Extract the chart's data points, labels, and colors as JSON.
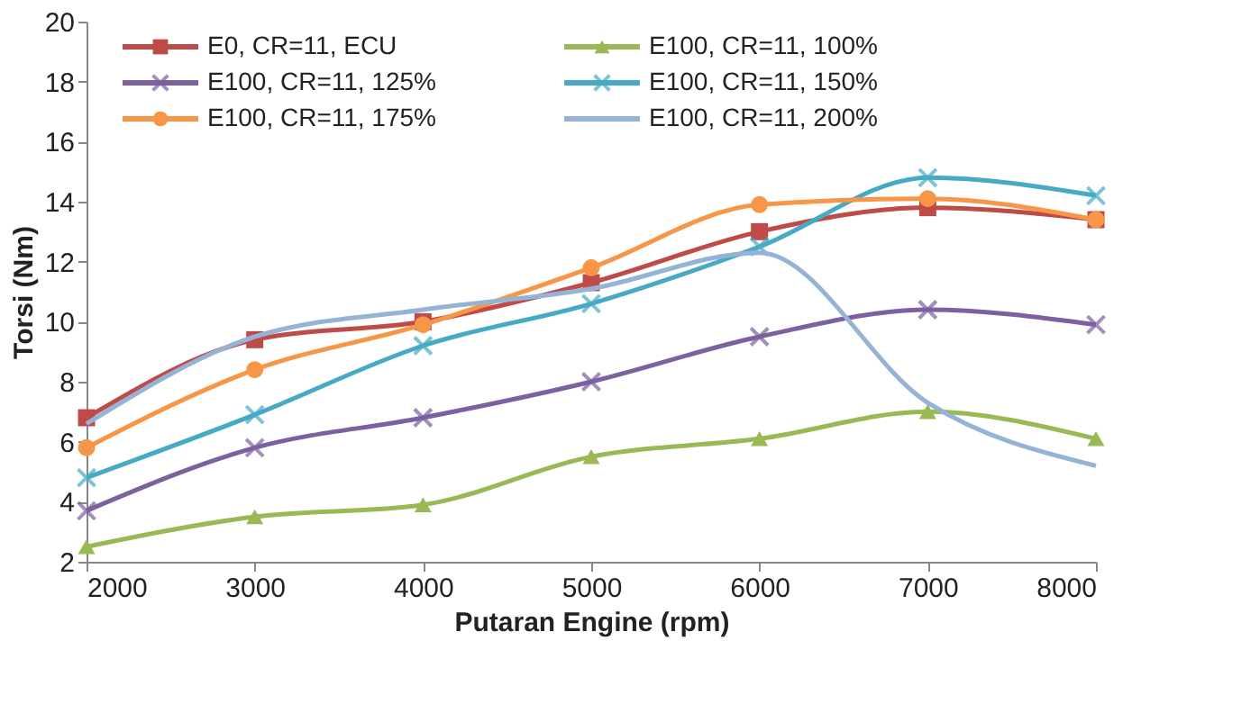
{
  "chart_data": {
    "type": "line",
    "xlabel": "Putaran Engine (rpm)",
    "ylabel": "Torsi (Nm)",
    "x": [
      2000,
      3000,
      4000,
      5000,
      6000,
      7000,
      8000
    ],
    "xlim": [
      2000,
      8000
    ],
    "xticks": [
      2000,
      3000,
      4000,
      5000,
      6000,
      7000,
      8000
    ],
    "ylim": [
      2,
      20
    ],
    "yticks": [
      2,
      4,
      6,
      8,
      10,
      12,
      14,
      16,
      18,
      20
    ],
    "grid": false,
    "legend": "top",
    "series": [
      {
        "name": "E0, CR=11, ECU",
        "color": "#be4b48",
        "marker": "square",
        "values": [
          6.8,
          9.4,
          10.0,
          11.3,
          13.0,
          13.8,
          13.4
        ]
      },
      {
        "name": "E100, CR=11, 100%",
        "color": "#98b954",
        "marker": "triangle",
        "values": [
          2.5,
          3.5,
          3.9,
          5.5,
          6.1,
          7.0,
          6.1
        ]
      },
      {
        "name": "E100, CR=11, 125%",
        "color": "#7d60a0",
        "marker": "cross",
        "values": [
          3.7,
          5.8,
          6.8,
          8.0,
          9.5,
          10.4,
          9.9
        ]
      },
      {
        "name": "E100, CR=11, 150%",
        "color": "#46aac5",
        "marker": "cross",
        "values": [
          4.8,
          6.9,
          9.2,
          10.6,
          12.5,
          14.8,
          14.2
        ]
      },
      {
        "name": "E100, CR=11, 175%",
        "color": "#f79646",
        "marker": "circle",
        "values": [
          5.8,
          8.4,
          9.9,
          11.8,
          13.9,
          14.1,
          13.4
        ]
      },
      {
        "name": "E100, CR=11, 200%",
        "color": "#95b3d7",
        "marker": "none",
        "values": [
          6.6,
          9.5,
          10.4,
          11.1,
          12.3,
          7.3,
          5.2
        ]
      }
    ]
  }
}
